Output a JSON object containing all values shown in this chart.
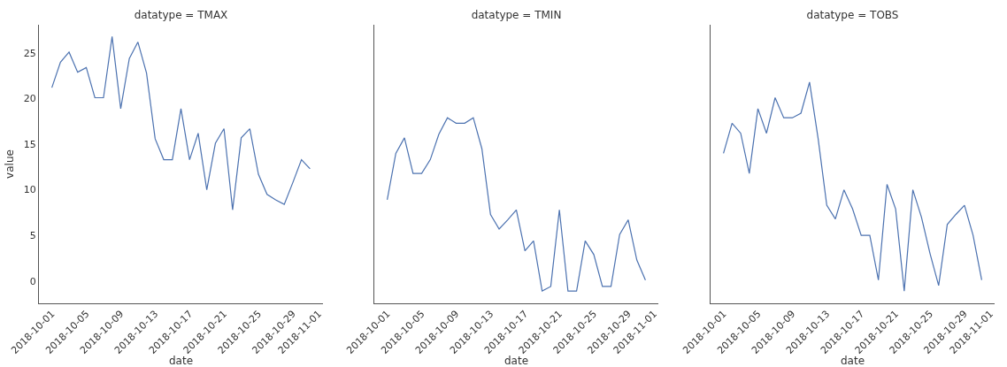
{
  "chart_data": [
    {
      "type": "line",
      "title": "datatype = TMAX",
      "xlabel": "date",
      "ylabel": "value",
      "x": [
        "2018-10-01",
        "2018-10-02",
        "2018-10-03",
        "2018-10-04",
        "2018-10-05",
        "2018-10-06",
        "2018-10-07",
        "2018-10-08",
        "2018-10-09",
        "2018-10-10",
        "2018-10-11",
        "2018-10-12",
        "2018-10-13",
        "2018-10-14",
        "2018-10-15",
        "2018-10-16",
        "2018-10-17",
        "2018-10-18",
        "2018-10-19",
        "2018-10-20",
        "2018-10-21",
        "2018-10-22",
        "2018-10-23",
        "2018-10-24",
        "2018-10-25",
        "2018-10-26",
        "2018-10-27",
        "2018-10-28",
        "2018-10-29",
        "2018-10-30",
        "2018-10-31"
      ],
      "series": [
        {
          "color": "#4c72b0",
          "values": [
            21.2,
            24.0,
            25.1,
            22.9,
            23.4,
            20.1,
            20.1,
            26.8,
            18.9,
            24.4,
            26.2,
            22.8,
            15.6,
            13.3,
            13.3,
            18.9,
            13.3,
            16.2,
            10.0,
            15.1,
            16.7,
            7.8,
            15.7,
            16.7,
            11.7,
            9.5,
            8.9,
            8.4,
            10.8,
            13.3,
            12.3
          ]
        }
      ],
      "xlim": [
        "2018-09-29T12:00",
        "2018-11-01T12:00"
      ],
      "xticks": [
        "2018-10-01",
        "2018-10-05",
        "2018-10-09",
        "2018-10-13",
        "2018-10-17",
        "2018-10-21",
        "2018-10-25",
        "2018-10-29",
        "2018-11-01"
      ],
      "ylim": [
        -2.45,
        28.1
      ],
      "yticks": [
        0,
        5,
        10,
        15,
        20,
        25
      ],
      "grid": false,
      "line_style": "solid",
      "marker": "none"
    },
    {
      "type": "line",
      "title": "datatype = TMIN",
      "xlabel": "date",
      "x": [
        "2018-10-01",
        "2018-10-02",
        "2018-10-03",
        "2018-10-04",
        "2018-10-05",
        "2018-10-06",
        "2018-10-07",
        "2018-10-08",
        "2018-10-09",
        "2018-10-10",
        "2018-10-11",
        "2018-10-12",
        "2018-10-13",
        "2018-10-14",
        "2018-10-15",
        "2018-10-16",
        "2018-10-17",
        "2018-10-18",
        "2018-10-19",
        "2018-10-20",
        "2018-10-21",
        "2018-10-22",
        "2018-10-23",
        "2018-10-24",
        "2018-10-25",
        "2018-10-26",
        "2018-10-27",
        "2018-10-28",
        "2018-10-29",
        "2018-10-30",
        "2018-10-31"
      ],
      "series": [
        {
          "color": "#4c72b0",
          "values": [
            8.9,
            14.0,
            15.7,
            11.8,
            11.8,
            13.3,
            16.1,
            17.9,
            17.3,
            17.3,
            17.9,
            14.5,
            7.3,
            5.7,
            6.7,
            7.8,
            3.3,
            4.4,
            -1.1,
            -0.6,
            7.8,
            -1.1,
            -1.1,
            4.4,
            2.9,
            -0.6,
            -0.6,
            5.1,
            6.7,
            2.3,
            0.1
          ]
        }
      ],
      "xlim": [
        "2018-09-29T12:00",
        "2018-11-01T12:00"
      ],
      "xticks": [
        "2018-10-01",
        "2018-10-05",
        "2018-10-09",
        "2018-10-13",
        "2018-10-17",
        "2018-10-21",
        "2018-10-25",
        "2018-10-29",
        "2018-11-01"
      ],
      "ylim": [
        -2.45,
        28.1
      ],
      "yticks": [
        0,
        5,
        10,
        15,
        20,
        25
      ],
      "tick_labels": "x",
      "grid": false,
      "line_style": "solid",
      "marker": "none"
    },
    {
      "type": "line",
      "title": "datatype = TOBS",
      "xlabel": "date",
      "x": [
        "2018-10-01",
        "2018-10-02",
        "2018-10-03",
        "2018-10-04",
        "2018-10-05",
        "2018-10-06",
        "2018-10-07",
        "2018-10-08",
        "2018-10-09",
        "2018-10-10",
        "2018-10-11",
        "2018-10-12",
        "2018-10-13",
        "2018-10-14",
        "2018-10-15",
        "2018-10-16",
        "2018-10-17",
        "2018-10-18",
        "2018-10-19",
        "2018-10-20",
        "2018-10-21",
        "2018-10-22",
        "2018-10-23",
        "2018-10-24",
        "2018-10-25",
        "2018-10-26",
        "2018-10-27",
        "2018-10-28",
        "2018-10-29",
        "2018-10-30",
        "2018-10-31"
      ],
      "series": [
        {
          "color": "#4c72b0",
          "values": [
            14.0,
            17.3,
            16.2,
            11.8,
            18.9,
            16.2,
            20.1,
            17.9,
            17.9,
            18.4,
            21.8,
            15.6,
            8.3,
            6.8,
            10.0,
            7.9,
            5.0,
            5.0,
            0.1,
            10.6,
            7.9,
            -1.1,
            10.0,
            7.0,
            3.0,
            -0.5,
            6.2,
            7.3,
            8.3,
            5.0,
            0.1
          ]
        }
      ],
      "xlim": [
        "2018-09-29T12:00",
        "2018-11-01T12:00"
      ],
      "xticks": [
        "2018-10-01",
        "2018-10-05",
        "2018-10-09",
        "2018-10-13",
        "2018-10-17",
        "2018-10-21",
        "2018-10-25",
        "2018-10-29",
        "2018-11-01"
      ],
      "ylim": [
        -2.45,
        28.1
      ],
      "yticks": [
        0,
        5,
        10,
        15,
        20,
        25
      ],
      "tick_labels": "x",
      "grid": false,
      "line_style": "solid",
      "marker": "none"
    }
  ]
}
